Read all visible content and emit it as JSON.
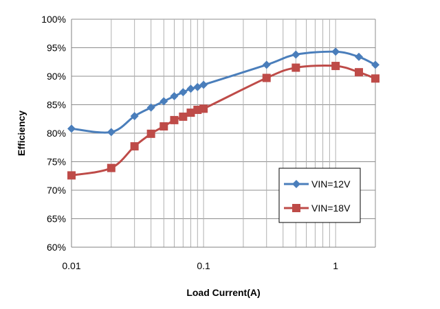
{
  "chart_data": {
    "type": "line",
    "title": "",
    "xlabel": "Load  Current(A)",
    "ylabel": "Efficiency",
    "x_scale": "log",
    "xlim": [
      0.01,
      2
    ],
    "ylim": [
      60,
      100
    ],
    "grid": true,
    "legend_position": "right-middle",
    "x_tick_labels": [
      "0.01",
      "0.1",
      "1"
    ],
    "y_tick_labels": [
      "60%",
      "65%",
      "70%",
      "75%",
      "80%",
      "85%",
      "90%",
      "95%",
      "100%"
    ],
    "series": [
      {
        "name": "VIN=12V",
        "color": "#4a7ebb",
        "marker": "diamond",
        "x": [
          0.01,
          0.02,
          0.03,
          0.04,
          0.05,
          0.06,
          0.07,
          0.08,
          0.09,
          0.1,
          0.3,
          0.5,
          1,
          1.5,
          2
        ],
        "y": [
          80.8,
          80.2,
          83.0,
          84.5,
          85.6,
          86.5,
          87.2,
          87.8,
          88.1,
          88.5,
          92.0,
          93.8,
          94.3,
          93.4,
          92.0
        ]
      },
      {
        "name": "VIN=18V",
        "color": "#be4b48",
        "marker": "square",
        "x": [
          0.01,
          0.02,
          0.03,
          0.04,
          0.05,
          0.06,
          0.07,
          0.08,
          0.09,
          0.1,
          0.3,
          0.5,
          1,
          1.5,
          2
        ],
        "y": [
          72.6,
          73.9,
          77.7,
          79.9,
          81.2,
          82.3,
          82.9,
          83.6,
          84.1,
          84.3,
          89.7,
          91.5,
          91.8,
          90.7,
          89.6
        ]
      }
    ]
  }
}
